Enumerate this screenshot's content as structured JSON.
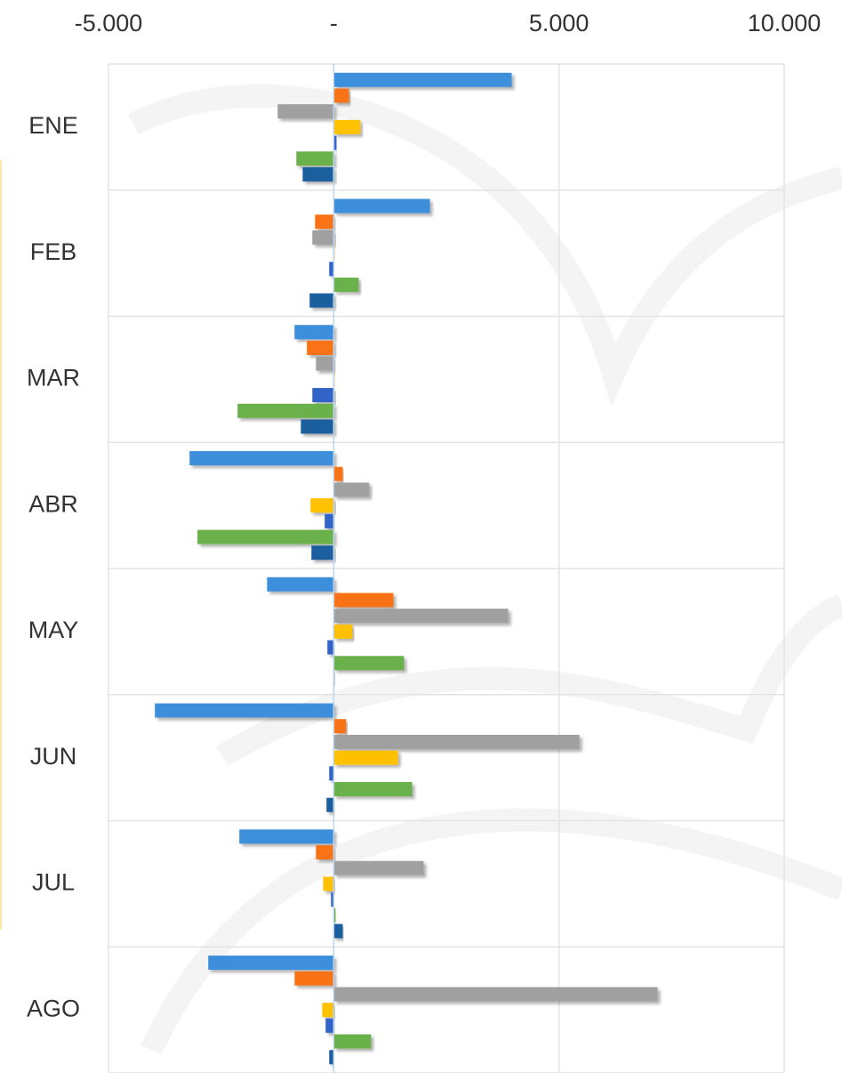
{
  "chart_data": {
    "type": "bar",
    "orientation": "horizontal",
    "categories": [
      "ENE",
      "FEB",
      "MAR",
      "ABR",
      "MAY",
      "JUN",
      "JUL",
      "AGO"
    ],
    "series": [
      {
        "color": "#3d8fdc",
        "values": [
          3950,
          2135,
          -870,
          -3200,
          -1480,
          -3970,
          -2095,
          -2785
        ]
      },
      {
        "color": "#f97316",
        "values": [
          340,
          -415,
          -595,
          200,
          1325,
          275,
          -395,
          -870
        ]
      },
      {
        "color": "#a0a0a0",
        "values": [
          -1245,
          -475,
          -395,
          790,
          3875,
          5455,
          1995,
          7190
        ]
      },
      {
        "color": "#ffc000",
        "values": [
          590,
          20,
          20,
          -515,
          415,
          1425,
          -235,
          -255
        ]
      },
      {
        "color": "#3264c8",
        "values": [
          60,
          -100,
          -475,
          -200,
          -140,
          -100,
          -60,
          -180
        ]
      },
      {
        "color": "#6ab04c",
        "values": [
          -830,
          555,
          -2135,
          -3025,
          1560,
          1740,
          40,
          830
        ]
      },
      {
        "color": "#1f5f9f",
        "values": [
          -690,
          -535,
          -730,
          -495,
          20,
          -160,
          200,
          -100
        ]
      }
    ],
    "xlim": [
      -5000,
      10000
    ],
    "xticks": [
      {
        "value": -5000,
        "label": "-5.000"
      },
      {
        "value": 0,
        "label": "-"
      },
      {
        "value": 5000,
        "label": "5.000"
      },
      {
        "value": 10000,
        "label": "10.000"
      }
    ],
    "grid": true
  }
}
